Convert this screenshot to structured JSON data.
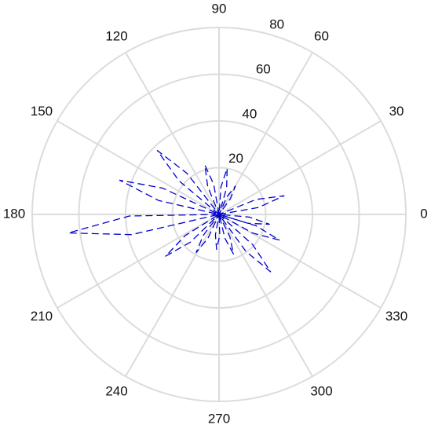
{
  "chart_data": {
    "type": "polar",
    "rlim": [
      0,
      80
    ],
    "rticks": [
      20,
      40,
      60,
      80
    ],
    "thetaticks": [
      0,
      30,
      60,
      90,
      120,
      150,
      180,
      210,
      240,
      270,
      300,
      330
    ],
    "grid": true,
    "color": "#0000cc",
    "line_style": "dashed",
    "theta": [
      6,
      10,
      16,
      22,
      26,
      50,
      54,
      60,
      66,
      70,
      70,
      74,
      80,
      86,
      90,
      96,
      100,
      106,
      112,
      116,
      124,
      128,
      134,
      140,
      144,
      151,
      155,
      161,
      167,
      171,
      177,
      181,
      187,
      193,
      197,
      208,
      212,
      218,
      224,
      228,
      229,
      233,
      239,
      245,
      249,
      256,
      260,
      266,
      272,
      276,
      280,
      284,
      290,
      296,
      300,
      302,
      306,
      312,
      318,
      322,
      327,
      331,
      337,
      343,
      347,
      339,
      343,
      349,
      355,
      359
    ],
    "r": [
      0,
      17.1,
      29,
      17.1,
      0,
      0,
      8.3,
      14,
      8.3,
      0,
      0,
      11.8,
      20,
      11.8,
      0,
      0,
      13,
      22,
      13,
      0,
      0,
      22.4,
      38,
      22.4,
      0,
      0,
      26.6,
      45,
      26.6,
      0,
      0,
      38.4,
      65,
      38.4,
      0,
      0,
      17.1,
      29,
      17.1,
      0,
      0,
      11.2,
      19,
      11.2,
      0,
      0,
      8.9,
      15,
      8.9,
      0,
      0,
      10.6,
      18,
      10.6,
      0,
      0,
      19.5,
      33,
      19.5,
      0,
      0,
      16.5,
      28,
      16.5,
      0,
      0,
      13,
      22,
      13,
      0
    ]
  }
}
